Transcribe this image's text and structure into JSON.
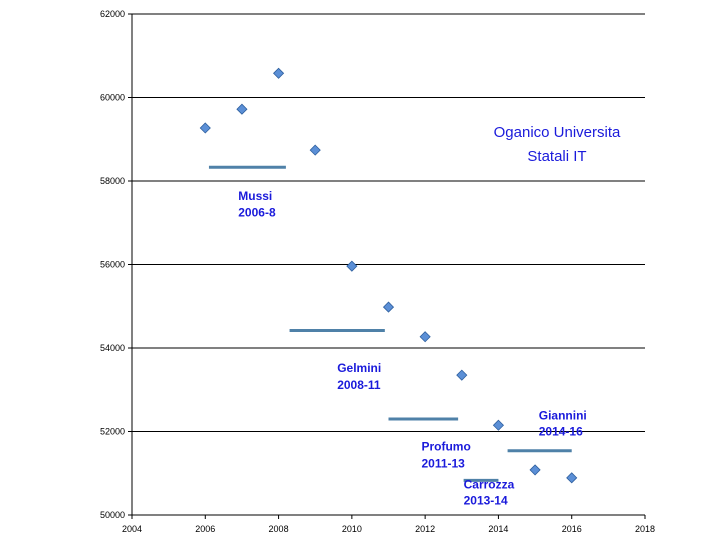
{
  "chart_data": {
    "type": "scatter",
    "title": [
      "Oganico Universita",
      "Statali IT"
    ],
    "xlabel": "",
    "ylabel": "",
    "xlim": [
      2004,
      2018
    ],
    "ylim": [
      50000,
      62000
    ],
    "x_ticks": [
      "2004",
      "2006",
      "2008",
      "2010",
      "2012",
      "2014",
      "2016",
      "2018"
    ],
    "y_ticks": [
      "50000",
      "52000",
      "54000",
      "56000",
      "58000",
      "60000",
      "62000"
    ],
    "grid": "horizontal",
    "series": [
      {
        "x": [
          2006,
          2007,
          2008,
          2009,
          2010,
          2011,
          2012,
          2013,
          2014,
          2015,
          2016
        ],
        "y": [
          59270,
          59720,
          60580,
          58740,
          55960,
          54980,
          54270,
          53350,
          52150,
          51080,
          50890
        ],
        "color": "#5b8fd6",
        "marker": "diamond"
      }
    ],
    "annotations": [
      {
        "lines": [
          "Mussi",
          "2006-8"
        ],
        "x0": 2006.1,
        "x1": 2008.2,
        "y": 58330,
        "label_x": 2006.9,
        "label_y1": 57550,
        "label_y2": 57150
      },
      {
        "lines": [
          "Gelmini",
          "2008-11"
        ],
        "x0": 2008.3,
        "x1": 2010.9,
        "y": 54420,
        "label_x": 2009.6,
        "label_y1": 53420,
        "label_y2": 53020
      },
      {
        "lines": [
          "Profumo",
          "2011-13"
        ],
        "x0": 2011.0,
        "x1": 2012.9,
        "y": 52300,
        "label_x": 2011.9,
        "label_y1": 51540,
        "label_y2": 51140
      },
      {
        "lines": [
          "Carrozza",
          "2013-14"
        ],
        "x0": 2013.05,
        "x1": 2014.0,
        "y": 50830,
        "label_x": 2013.05,
        "label_y1": 50640,
        "label_y2": 50250
      },
      {
        "lines": [
          "Giannini",
          "2014-16"
        ],
        "x0": 2014.25,
        "x1": 2016.0,
        "y": 51540,
        "label_x": 2015.1,
        "label_y1": 52290,
        "label_y2": 51900
      }
    ]
  }
}
